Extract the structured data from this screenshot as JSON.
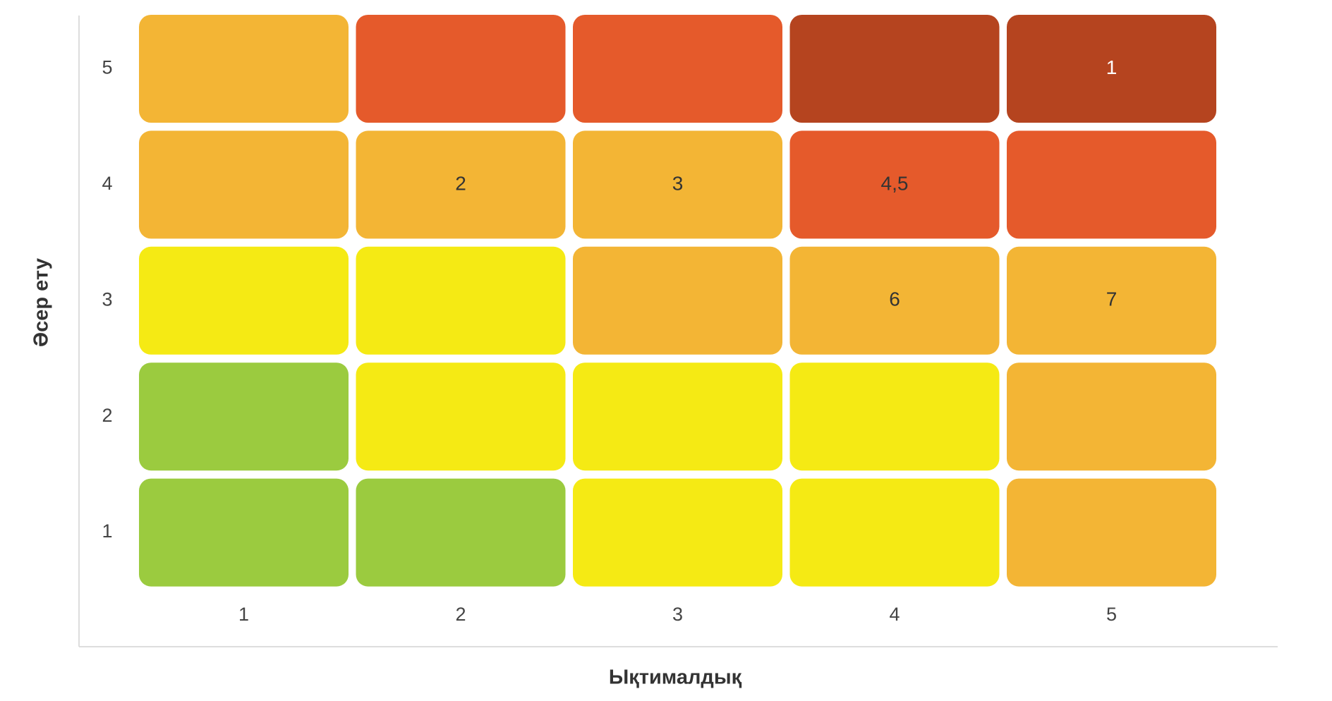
{
  "chart_data": {
    "type": "heatmap",
    "x_label": "Ықтималдық",
    "y_label": "Әсер ету",
    "x_categories": [
      "1",
      "2",
      "3",
      "4",
      "5"
    ],
    "y_categories": [
      "1",
      "2",
      "3",
      "4",
      "5"
    ],
    "colors": [
      [
        "#9BCB3F",
        "#9BCB3F",
        "#F5EA14",
        "#F5EA14",
        "#F3B535"
      ],
      [
        "#9BCB3F",
        "#F5EA14",
        "#F5EA14",
        "#F5EA14",
        "#F3B535"
      ],
      [
        "#F5EA14",
        "#F5EA14",
        "#F3B535",
        "#F3B535",
        "#F3B535"
      ],
      [
        "#F3B535",
        "#F3B535",
        "#F3B535",
        "#E55A2B",
        "#E55A2B"
      ],
      [
        "#F3B535",
        "#E55A2B",
        "#E55A2B",
        "#B5441F",
        "#B5441F"
      ]
    ],
    "cell_labels": [
      [
        null,
        null,
        null,
        null,
        null
      ],
      [
        null,
        null,
        null,
        null,
        null
      ],
      [
        null,
        null,
        null,
        "6",
        "7"
      ],
      [
        null,
        "2",
        "3",
        "4,5",
        null
      ],
      [
        null,
        null,
        null,
        null,
        "1"
      ]
    ]
  }
}
